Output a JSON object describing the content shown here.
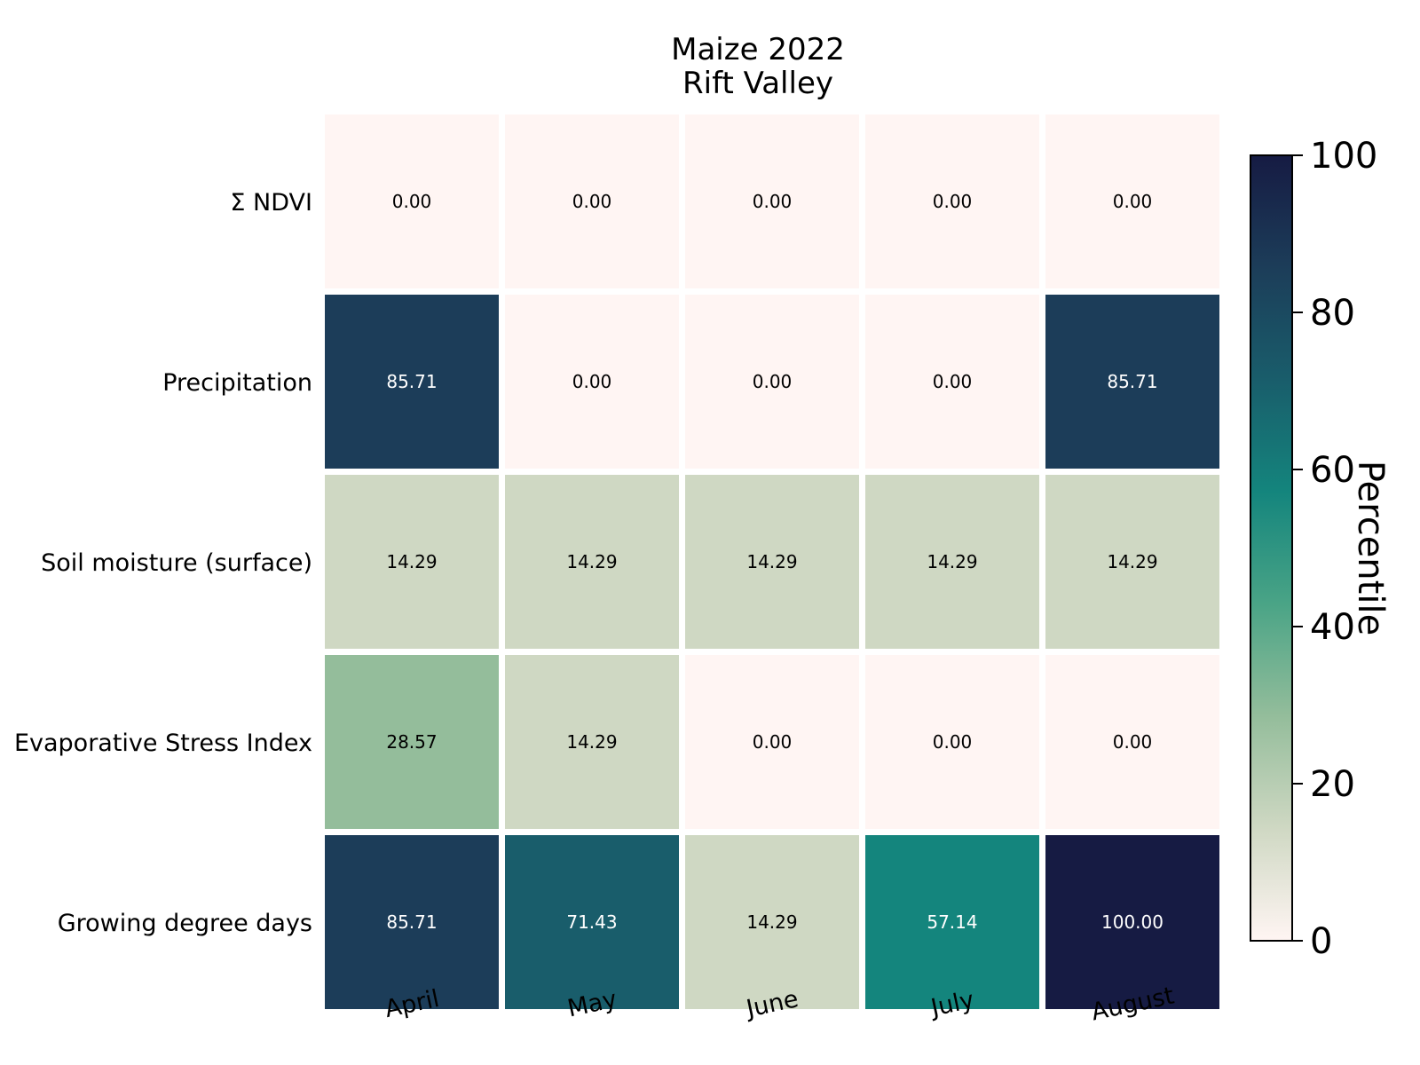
{
  "chart_data": {
    "type": "heatmap",
    "title": [
      "Maize 2022",
      "Rift Valley"
    ],
    "rows": [
      "Σ NDVI",
      "Precipitation",
      "Soil moisture (surface)",
      "Evaporative Stress Index",
      "Growing degree days"
    ],
    "columns": [
      "April",
      "May",
      "June",
      "July",
      "August"
    ],
    "values": [
      [
        0.0,
        0.0,
        0.0,
        0.0,
        0.0
      ],
      [
        85.71,
        0.0,
        0.0,
        0.0,
        85.71
      ],
      [
        14.29,
        14.29,
        14.29,
        14.29,
        14.29
      ],
      [
        28.57,
        14.29,
        0.0,
        0.0,
        0.0
      ],
      [
        85.71,
        71.43,
        14.29,
        57.14,
        100.0
      ]
    ],
    "value_labels": [
      [
        "0.00",
        "0.00",
        "0.00",
        "0.00",
        "0.00"
      ],
      [
        "85.71",
        "0.00",
        "0.00",
        "0.00",
        "85.71"
      ],
      [
        "14.29",
        "14.29",
        "14.29",
        "14.29",
        "14.29"
      ],
      [
        "28.57",
        "14.29",
        "0.00",
        "0.00",
        "0.00"
      ],
      [
        "85.71",
        "71.43",
        "14.29",
        "57.14",
        "100.00"
      ]
    ],
    "colorbar": {
      "label": "Percentile",
      "range": [
        0,
        100
      ],
      "ticks": [
        0,
        20,
        40,
        60,
        80,
        100
      ],
      "tick_labels": [
        "0",
        "20",
        "40",
        "60",
        "80",
        "100"
      ],
      "position": "right",
      "colormap": [
        {
          "v": 0,
          "color": "#fff5f3"
        },
        {
          "v": 14.29,
          "color": "#cfd8c3"
        },
        {
          "v": 28.57,
          "color": "#94bd9b"
        },
        {
          "v": 42.86,
          "color": "#4aa486"
        },
        {
          "v": 57.14,
          "color": "#14857d"
        },
        {
          "v": 71.43,
          "color": "#195d6b"
        },
        {
          "v": 85.71,
          "color": "#1c3d59"
        },
        {
          "v": 100,
          "color": "#161b43"
        }
      ]
    },
    "light_text_color": "#ffffff",
    "dark_text_color": "#000000",
    "cell_gridline_color": "#ffffff",
    "grid": false
  }
}
